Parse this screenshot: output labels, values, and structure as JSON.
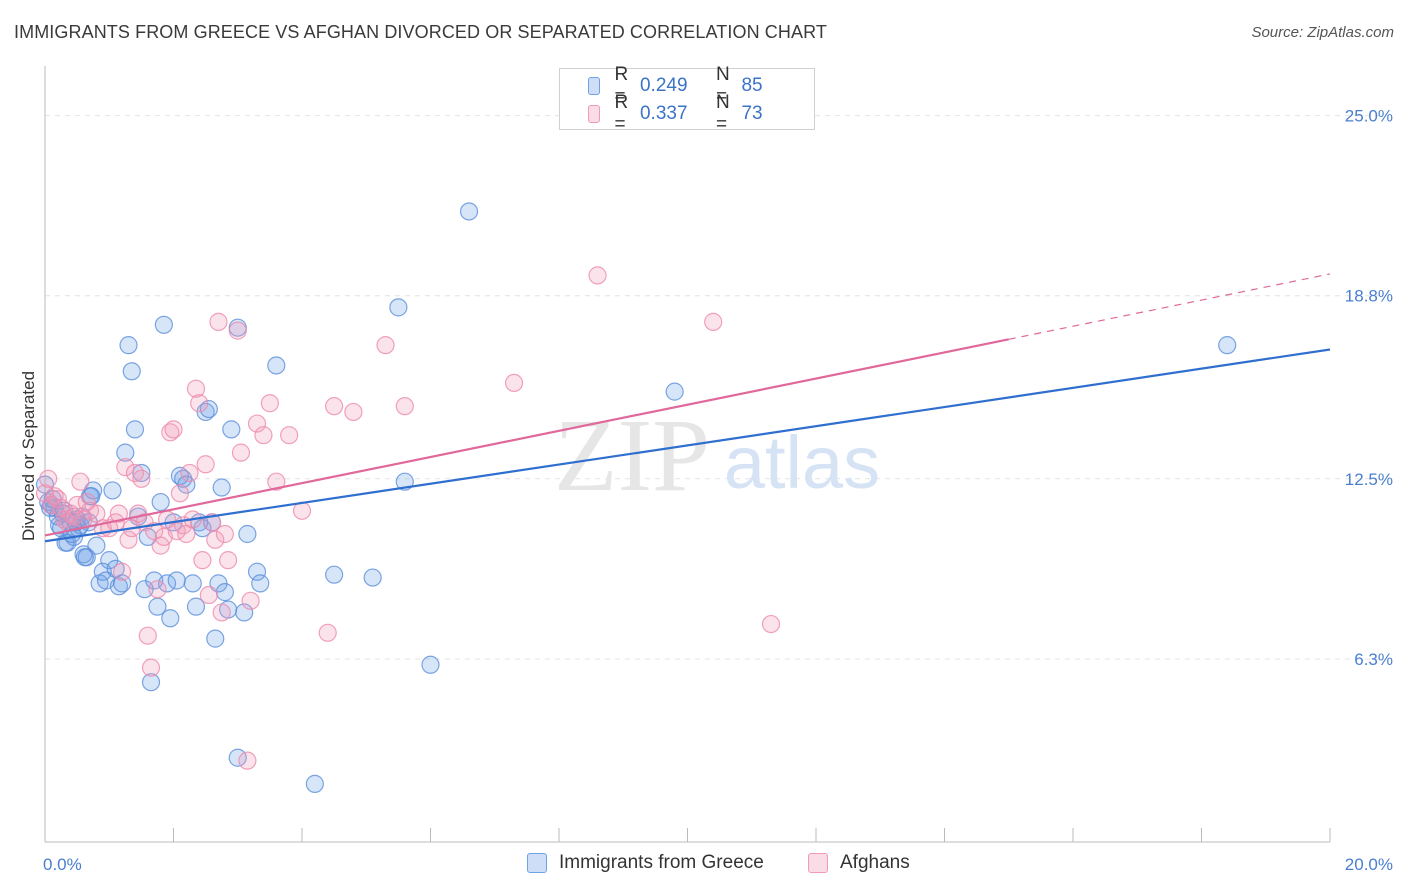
{
  "title": "IMMIGRANTS FROM GREECE VS AFGHAN DIVORCED OR SEPARATED CORRELATION CHART",
  "source": "Source: ZipAtlas.com",
  "watermark": {
    "zip": "ZIP",
    "atlas": "atlas"
  },
  "legend": {
    "r_label": "R =",
    "n_label": "N =",
    "items": [
      {
        "r": "0.249",
        "n": "85"
      },
      {
        "r": "0.337",
        "n": "73"
      }
    ]
  },
  "colors": {
    "greece": "#6fa1e6",
    "greece_line": "#2f6fcf",
    "afghans": "#f29ab8",
    "afghans_line": "#e0689a",
    "tick": "#4a7fd0"
  },
  "chart_data": {
    "type": "scatter",
    "xlabel": "",
    "ylabel": "Divorced or Separated",
    "xlim": [
      0,
      20
    ],
    "ylim": [
      0,
      26.5
    ],
    "x_tick_labels": [
      "0.0%",
      "20.0%"
    ],
    "y_ticks": [
      6.3,
      12.5,
      18.8,
      25.0
    ],
    "y_tick_labels": [
      "6.3%",
      "12.5%",
      "18.8%",
      "25.0%"
    ],
    "grid": true,
    "legend_position": "bottom-center",
    "series": [
      {
        "name": "Immigrants from Greece",
        "color": "#6fa1e6",
        "trend": {
          "x": [
            0,
            20
          ],
          "y": [
            10.35,
            16.95
          ]
        },
        "points": [
          [
            0.0,
            12.3
          ],
          [
            0.1,
            11.6
          ],
          [
            0.15,
            11.5
          ],
          [
            0.2,
            11.2
          ],
          [
            0.25,
            10.8
          ],
          [
            0.3,
            11.4
          ],
          [
            0.35,
            10.3
          ],
          [
            0.4,
            11.0
          ],
          [
            0.45,
            10.5
          ],
          [
            0.5,
            11.1
          ],
          [
            0.55,
            10.9
          ],
          [
            0.6,
            9.9
          ],
          [
            0.65,
            9.8
          ],
          [
            0.7,
            11.9
          ],
          [
            0.75,
            12.1
          ],
          [
            0.8,
            10.2
          ],
          [
            0.85,
            8.9
          ],
          [
            0.9,
            9.3
          ],
          [
            0.95,
            9.0
          ],
          [
            1.0,
            9.7
          ],
          [
            1.05,
            12.1
          ],
          [
            1.1,
            9.4
          ],
          [
            1.15,
            8.8
          ],
          [
            1.2,
            8.9
          ],
          [
            1.25,
            13.4
          ],
          [
            1.3,
            17.1
          ],
          [
            1.35,
            16.2
          ],
          [
            1.4,
            14.2
          ],
          [
            1.45,
            11.2
          ],
          [
            1.5,
            12.7
          ],
          [
            1.55,
            8.7
          ],
          [
            1.6,
            10.5
          ],
          [
            1.65,
            5.5
          ],
          [
            1.7,
            9.0
          ],
          [
            1.75,
            8.1
          ],
          [
            1.8,
            11.7
          ],
          [
            1.85,
            17.8
          ],
          [
            1.9,
            8.9
          ],
          [
            1.95,
            7.7
          ],
          [
            2.0,
            11.0
          ],
          [
            2.05,
            9.0
          ],
          [
            2.1,
            12.6
          ],
          [
            2.15,
            12.5
          ],
          [
            2.2,
            12.3
          ],
          [
            2.3,
            8.9
          ],
          [
            2.35,
            8.1
          ],
          [
            2.4,
            11.0
          ],
          [
            2.45,
            10.8
          ],
          [
            2.5,
            14.8
          ],
          [
            2.55,
            14.9
          ],
          [
            2.6,
            11.0
          ],
          [
            2.65,
            7.0
          ],
          [
            2.7,
            8.9
          ],
          [
            2.75,
            12.2
          ],
          [
            2.8,
            8.6
          ],
          [
            2.85,
            8.0
          ],
          [
            2.9,
            14.2
          ],
          [
            3.0,
            2.9
          ],
          [
            3.0,
            17.7
          ],
          [
            3.1,
            7.9
          ],
          [
            3.15,
            10.6
          ],
          [
            3.3,
            9.3
          ],
          [
            3.35,
            8.9
          ],
          [
            3.6,
            16.4
          ],
          [
            4.2,
            2.0
          ],
          [
            4.5,
            9.2
          ],
          [
            5.1,
            9.1
          ],
          [
            5.5,
            18.4
          ],
          [
            5.6,
            12.4
          ],
          [
            6.0,
            6.1
          ],
          [
            6.6,
            21.7
          ],
          [
            9.8,
            15.5
          ],
          [
            18.4,
            17.1
          ],
          [
            0.05,
            11.7
          ],
          [
            0.08,
            11.5
          ],
          [
            0.12,
            11.8
          ],
          [
            0.22,
            10.9
          ],
          [
            0.28,
            11.3
          ],
          [
            0.32,
            10.3
          ],
          [
            0.42,
            10.6
          ],
          [
            0.48,
            11.0
          ],
          [
            0.52,
            10.8
          ],
          [
            0.58,
            11.2
          ],
          [
            0.62,
            9.8
          ],
          [
            0.68,
            11.0
          ],
          [
            0.72,
            11.9
          ]
        ]
      },
      {
        "name": "Afghans",
        "color": "#f29ab8",
        "trend": {
          "x": [
            0,
            15
          ],
          "y": [
            10.55,
            17.3
          ]
        },
        "trend_dashed": {
          "x": [
            15,
            20
          ],
          "y": [
            17.3,
            19.55
          ]
        },
        "points": [
          [
            0.0,
            12.0
          ],
          [
            0.1,
            11.6
          ],
          [
            0.2,
            11.8
          ],
          [
            0.3,
            11.1
          ],
          [
            0.4,
            11.3
          ],
          [
            0.5,
            11.6
          ],
          [
            0.6,
            11.1
          ],
          [
            0.7,
            11.4
          ],
          [
            0.8,
            11.3
          ],
          [
            0.9,
            10.8
          ],
          [
            1.0,
            10.8
          ],
          [
            1.1,
            11.0
          ],
          [
            1.15,
            11.3
          ],
          [
            1.2,
            9.3
          ],
          [
            1.25,
            12.9
          ],
          [
            1.3,
            10.4
          ],
          [
            1.35,
            10.8
          ],
          [
            1.4,
            12.7
          ],
          [
            1.45,
            11.3
          ],
          [
            1.5,
            12.5
          ],
          [
            1.55,
            11.0
          ],
          [
            1.6,
            7.1
          ],
          [
            1.65,
            6.0
          ],
          [
            1.7,
            10.7
          ],
          [
            1.75,
            8.7
          ],
          [
            1.8,
            10.2
          ],
          [
            1.85,
            10.5
          ],
          [
            1.9,
            11.1
          ],
          [
            1.95,
            14.1
          ],
          [
            2.0,
            14.2
          ],
          [
            2.05,
            10.7
          ],
          [
            2.1,
            12.0
          ],
          [
            2.15,
            10.9
          ],
          [
            2.2,
            10.6
          ],
          [
            2.25,
            12.7
          ],
          [
            2.3,
            11.1
          ],
          [
            2.35,
            15.6
          ],
          [
            2.4,
            15.1
          ],
          [
            2.45,
            9.7
          ],
          [
            2.5,
            13.0
          ],
          [
            2.55,
            8.5
          ],
          [
            2.6,
            11.0
          ],
          [
            2.65,
            10.4
          ],
          [
            2.7,
            17.9
          ],
          [
            2.75,
            7.9
          ],
          [
            2.8,
            10.6
          ],
          [
            2.85,
            9.7
          ],
          [
            3.0,
            17.6
          ],
          [
            3.05,
            13.4
          ],
          [
            3.15,
            2.8
          ],
          [
            3.2,
            8.3
          ],
          [
            3.3,
            14.4
          ],
          [
            3.4,
            14.0
          ],
          [
            3.5,
            15.1
          ],
          [
            3.6,
            12.4
          ],
          [
            3.8,
            14.0
          ],
          [
            4.0,
            11.4
          ],
          [
            4.4,
            7.2
          ],
          [
            4.5,
            15.0
          ],
          [
            4.8,
            14.8
          ],
          [
            5.3,
            17.1
          ],
          [
            5.6,
            15.0
          ],
          [
            7.3,
            15.8
          ],
          [
            8.6,
            19.5
          ],
          [
            10.4,
            17.9
          ],
          [
            11.3,
            7.5
          ],
          [
            0.05,
            12.5
          ],
          [
            0.15,
            11.9
          ],
          [
            0.25,
            11.5
          ],
          [
            0.35,
            11.0
          ],
          [
            0.45,
            11.2
          ],
          [
            0.55,
            12.4
          ],
          [
            0.65,
            11.7
          ]
        ]
      }
    ]
  }
}
